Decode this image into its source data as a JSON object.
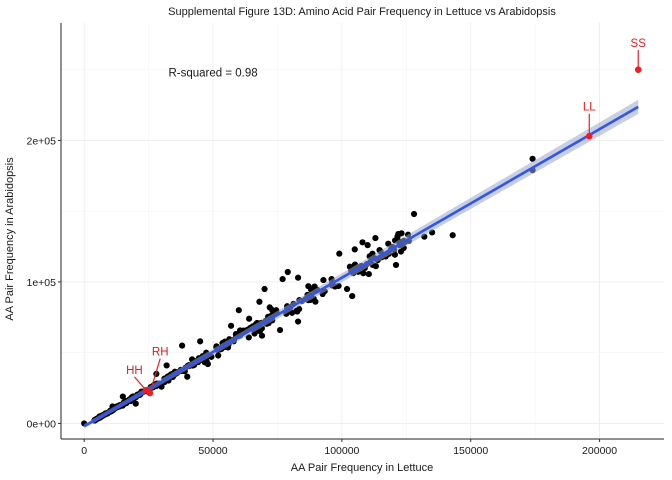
{
  "chart_data": {
    "type": "scatter",
    "title": "Supplemental Figure 13D: Amino Acid Pair Frequency in Lettuce vs Arabidopsis",
    "xlabel": "AA Pair Frequency in Lettuce",
    "ylabel": "AA Pair Frequency in Arabidopsis",
    "xlim": [
      -9000,
      225000
    ],
    "ylim": [
      -11000,
      283000
    ],
    "x_ticks": [
      0,
      50000,
      100000,
      150000,
      200000
    ],
    "x_tick_labels": [
      "0",
      "50000",
      "100000",
      "150000",
      "200000"
    ],
    "y_ticks": [
      0,
      100000,
      200000
    ],
    "y_tick_labels": [
      "0e+00",
      "1e+05",
      "2e+05"
    ],
    "annotation": {
      "text": "R-squared = 0.98",
      "x": 50000,
      "y": 248000
    },
    "fit_line": {
      "slope": 1.05,
      "intercept": -2000,
      "x_range": [
        0,
        215000
      ],
      "color": "#3355ee"
    },
    "highlighted": [
      {
        "label": "SS",
        "x": 215000,
        "y": 250000,
        "label_x": 215000,
        "label_y": 266000
      },
      {
        "label": "LL",
        "x": 196000,
        "y": 203000,
        "label_x": 196000,
        "label_y": 221000
      },
      {
        "label": "RH",
        "x": 25500,
        "y": 21500,
        "label_x": 29500,
        "label_y": 48000
      },
      {
        "label": "HH",
        "x": 24000,
        "y": 23500,
        "label_x": 19500,
        "label_y": 35000
      }
    ],
    "highlight_color": "#ee1c25",
    "point_color": "#000000",
    "outlier_points": [
      {
        "x": 174000,
        "y": 187000
      },
      {
        "x": 174000,
        "y": 179000
      },
      {
        "x": 143000,
        "y": 133000
      },
      {
        "x": 135000,
        "y": 135000
      },
      {
        "x": 128000,
        "y": 148000
      },
      {
        "x": 132000,
        "y": 132000
      },
      {
        "x": 126000,
        "y": 129000
      },
      {
        "x": 124000,
        "y": 124000
      },
      {
        "x": 118000,
        "y": 127000
      },
      {
        "x": 113000,
        "y": 131000
      },
      {
        "x": 110000,
        "y": 126000
      },
      {
        "x": 108000,
        "y": 128000
      },
      {
        "x": 105000,
        "y": 123000
      },
      {
        "x": 99000,
        "y": 120000
      },
      {
        "x": 117000,
        "y": 118000
      },
      {
        "x": 121000,
        "y": 112000
      },
      {
        "x": 112000,
        "y": 112000
      },
      {
        "x": 102000,
        "y": 95000
      },
      {
        "x": 104000,
        "y": 90000
      },
      {
        "x": 96000,
        "y": 102000
      },
      {
        "x": 86000,
        "y": 88000
      },
      {
        "x": 83000,
        "y": 103000
      },
      {
        "x": 87000,
        "y": 97000
      },
      {
        "x": 70000,
        "y": 95000
      },
      {
        "x": 77000,
        "y": 102000
      },
      {
        "x": 79000,
        "y": 107000
      },
      {
        "x": 68000,
        "y": 86000
      },
      {
        "x": 83000,
        "y": 72000
      },
      {
        "x": 76000,
        "y": 66000
      },
      {
        "x": 72000,
        "y": 82000
      },
      {
        "x": 64000,
        "y": 74000
      },
      {
        "x": 69000,
        "y": 62000
      },
      {
        "x": 60000,
        "y": 80000
      },
      {
        "x": 57000,
        "y": 69000
      },
      {
        "x": 45000,
        "y": 58000
      },
      {
        "x": 52000,
        "y": 48000
      },
      {
        "x": 38000,
        "y": 55000
      },
      {
        "x": 48000,
        "y": 42000
      },
      {
        "x": 40000,
        "y": 33000
      },
      {
        "x": 32000,
        "y": 41000
      },
      {
        "x": 30000,
        "y": 26000
      },
      {
        "x": 28000,
        "y": 35000
      },
      {
        "x": 20000,
        "y": 14000
      },
      {
        "x": 15000,
        "y": 19000
      },
      {
        "x": 6000,
        "y": 5000
      },
      {
        "x": 9000,
        "y": 7000
      },
      {
        "x": 0,
        "y": 0
      },
      {
        "x": 11000,
        "y": 12000
      }
    ],
    "cluster": {
      "n": 300,
      "x_min": 4000,
      "x_max": 128000,
      "slope": 1.05,
      "intercept": -2000,
      "spread": 0.07
    }
  }
}
